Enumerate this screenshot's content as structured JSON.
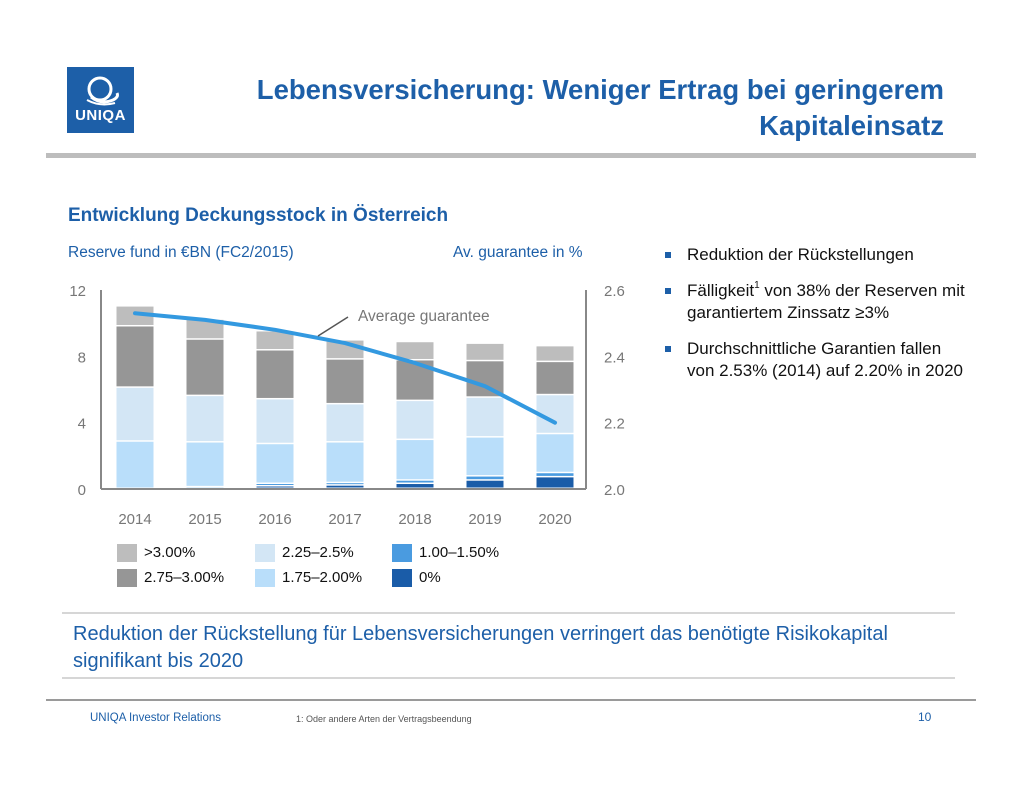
{
  "header": {
    "logo_text": "UNIQA",
    "title_line1": "Lebensversicherung: Weniger Ertrag bei geringerem",
    "title_line2": "Kapitaleinsatz"
  },
  "section": {
    "subtitle": "Entwicklung Deckungsstock in Österreich"
  },
  "colors": {
    "brand_blue": "#1d5fa8",
    "line_blue": "#3399e0"
  },
  "chart_data": {
    "type": "bar",
    "stacked": true,
    "title": "Entwicklung Deckungsstock in Österreich",
    "ylabel": "Reserve fund in €BN (FC2/2015)",
    "y2label": "Av. guarantee in %",
    "categories": [
      "2014",
      "2015",
      "2016",
      "2017",
      "2018",
      "2019",
      "2020"
    ],
    "ylim": [
      0,
      12
    ],
    "yticks": [
      "0",
      "4",
      "8",
      "12"
    ],
    "y2lim": [
      2.0,
      2.6
    ],
    "y2ticks": [
      "2.0",
      "2.2",
      "2.4",
      "2.6"
    ],
    "grid": false,
    "legend_position": "bottom",
    "series": [
      {
        "name": "0%",
        "color": "#1a5ca8",
        "values": [
          0.0,
          0.0,
          0.15,
          0.2,
          0.3,
          0.5,
          0.7
        ]
      },
      {
        "name": "1.00–1.50%",
        "color": "#4a9be0",
        "values": [
          0.0,
          0.1,
          0.15,
          0.15,
          0.2,
          0.25,
          0.25
        ]
      },
      {
        "name": "1.75–2.00%",
        "color": "#b9defa",
        "values": [
          2.85,
          2.7,
          2.4,
          2.45,
          2.45,
          2.35,
          2.35
        ]
      },
      {
        "name": "2.25–2.5%",
        "color": "#d3e6f5",
        "values": [
          3.25,
          2.8,
          2.7,
          2.3,
          2.35,
          2.4,
          2.35
        ]
      },
      {
        "name": "2.75–3.00%",
        "color": "#969696",
        "values": [
          3.7,
          3.4,
          2.95,
          2.7,
          2.45,
          2.2,
          2.0
        ]
      },
      {
        "name": ">3.00%",
        "color": "#bdbdbd",
        "values": [
          1.2,
          1.2,
          1.15,
          1.15,
          1.1,
          1.05,
          0.95
        ]
      }
    ],
    "line_series": {
      "name": "Average guarantee",
      "axis": "right",
      "color": "#3399e0",
      "values": [
        2.53,
        2.51,
        2.48,
        2.44,
        2.38,
        2.31,
        2.2
      ]
    },
    "annotations": [
      {
        "text": "Average guarantee",
        "target": "line_series"
      }
    ],
    "legend": [
      {
        "label": ">3.00%",
        "series": ">3.00%"
      },
      {
        "label": "2.75–3.00%",
        "series": "2.75–3.00%"
      },
      {
        "label": "2.25–2.5%",
        "series": "2.25–2.5%"
      },
      {
        "label": "1.75–2.00%",
        "series": "1.75–2.00%"
      },
      {
        "label": "1.00–1.50%",
        "series": "1.00–1.50%"
      },
      {
        "label": "0%",
        "series": "0%"
      }
    ]
  },
  "bullets": [
    {
      "text": "Reduktion der Rückstellungen"
    },
    {
      "text_before": "Fälligkeit",
      "sup": "1",
      "text_after": " von 38% der Reserven mit garantiertem Zinssatz ≥3%"
    },
    {
      "text": "Durchschnittliche Garantien fallen von 2.53% (2014) auf 2.20% in 2020"
    }
  ],
  "conclusion": "Reduktion der Rückstellung für Lebensversicherungen verringert das benötigte Risikokapital signifikant bis 2020",
  "footer": {
    "left": "UNIQA Investor Relations",
    "note": "1: Oder andere Arten der Vertragsbeendung",
    "page": "10"
  }
}
